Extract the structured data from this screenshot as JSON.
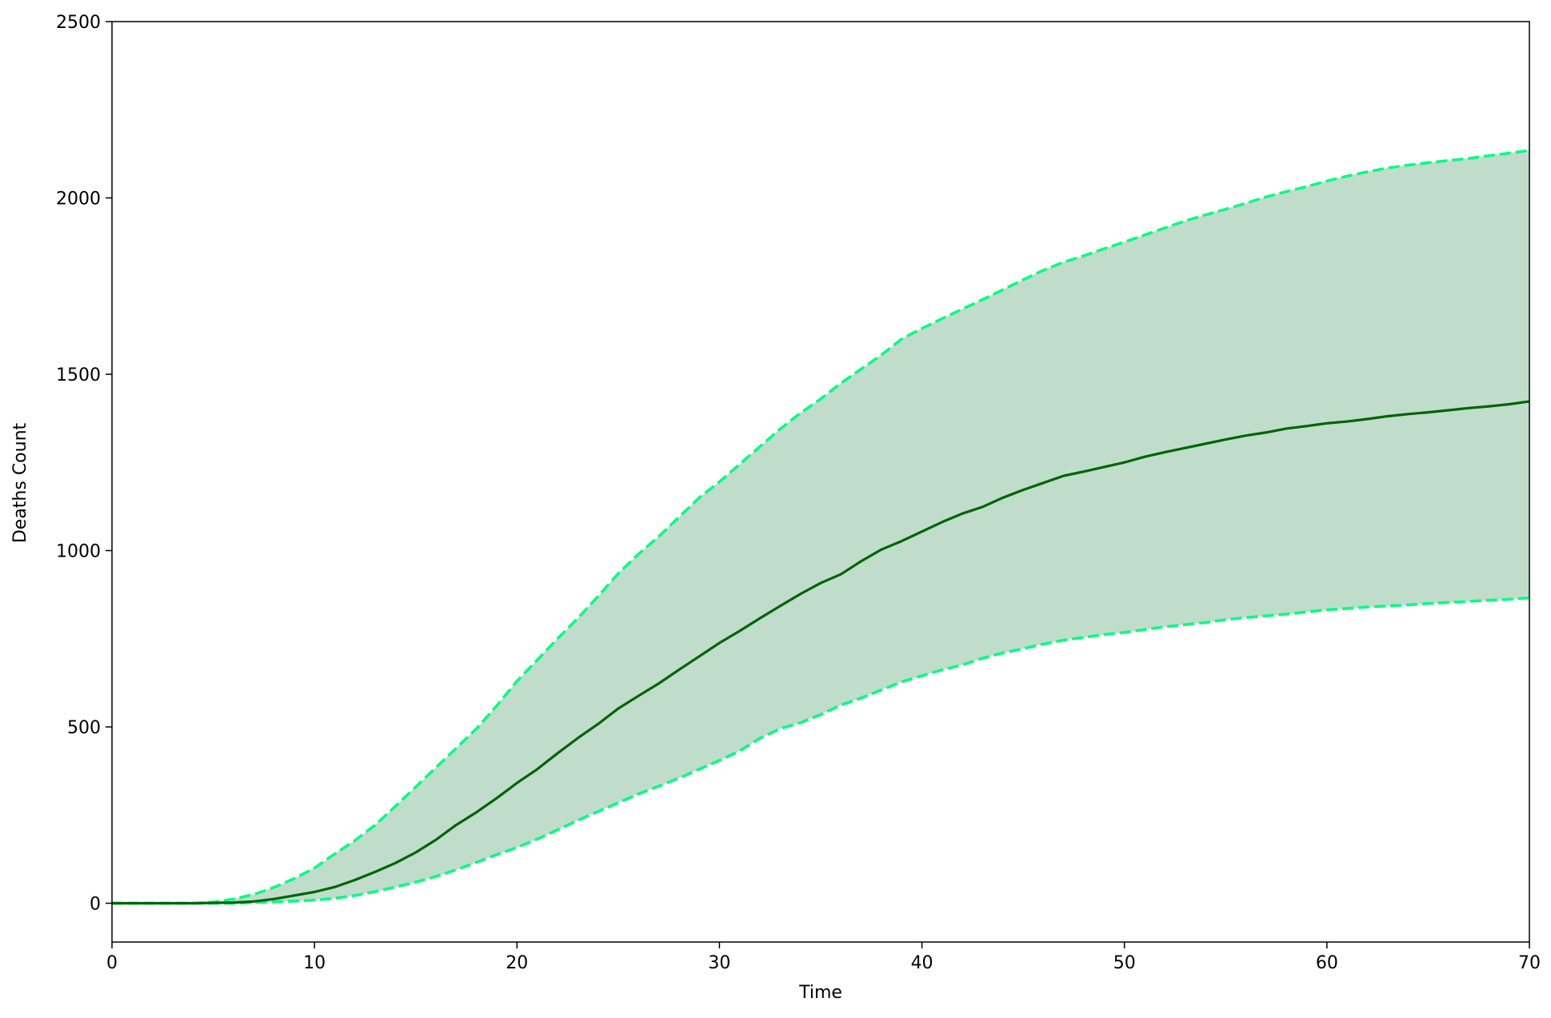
{
  "chart_data": {
    "type": "line",
    "xlabel": "Time",
    "ylabel": "Deaths Count",
    "x": [
      0,
      1,
      2,
      3,
      4,
      5,
      6,
      7,
      8,
      9,
      10,
      11,
      12,
      13,
      14,
      15,
      16,
      17,
      18,
      19,
      20,
      21,
      22,
      23,
      24,
      25,
      26,
      27,
      28,
      29,
      30,
      31,
      32,
      33,
      34,
      35,
      36,
      37,
      38,
      39,
      40,
      41,
      42,
      43,
      44,
      45,
      46,
      47,
      48,
      49,
      50,
      51,
      52,
      53,
      54,
      55,
      56,
      57,
      58,
      59,
      60,
      61,
      62,
      63,
      64,
      65,
      66,
      67,
      68,
      69,
      70
    ],
    "series": [
      {
        "color": "#006400",
        "linestyle": "solid",
        "values": [
          0,
          0,
          0,
          0,
          0,
          1,
          2,
          5,
          12,
          22,
          32,
          46,
          66,
          89,
          114,
          144,
          180,
          222,
          258,
          298,
          341,
          380,
          425,
          468,
          508,
          552,
          588,
          623,
          662,
          700,
          738,
          772,
          808,
          843,
          877,
          908,
          933,
          970,
          1003,
          1027,
          1054,
          1081,
          1105,
          1124,
          1150,
          1172,
          1192,
          1212,
          1224,
          1237,
          1250,
          1266,
          1279,
          1291,
          1303,
          1315,
          1326,
          1335,
          1346,
          1353,
          1361,
          1366,
          1373,
          1381,
          1387,
          1392,
          1398,
          1404,
          1409,
          1415,
          1423
        ]
      },
      {
        "color": "#00ff7f",
        "linestyle": "dashed",
        "values": [
          0,
          0,
          0,
          0,
          0,
          3,
          12,
          25,
          45,
          70,
          100,
          140,
          178,
          222,
          275,
          330,
          385,
          440,
          495,
          560,
          630,
          690,
          750,
          808,
          870,
          935,
          990,
          1040,
          1095,
          1150,
          1195,
          1245,
          1295,
          1345,
          1390,
          1430,
          1475,
          1515,
          1555,
          1600,
          1630,
          1658,
          1685,
          1712,
          1740,
          1768,
          1795,
          1818,
          1836,
          1856,
          1875,
          1895,
          1915,
          1935,
          1952,
          1968,
          1985,
          2003,
          2018,
          2032,
          2048,
          2062,
          2074,
          2085,
          2093,
          2100,
          2106,
          2112,
          2120,
          2127,
          2135
        ]
      },
      {
        "color": "#00ff7f",
        "linestyle": "dashed",
        "values": [
          0,
          0,
          0,
          0,
          0,
          0,
          0,
          2,
          4,
          6,
          9,
          14,
          22,
          33,
          46,
          60,
          76,
          95,
          116,
          138,
          158,
          182,
          208,
          235,
          260,
          285,
          310,
          332,
          355,
          380,
          405,
          432,
          468,
          495,
          512,
          535,
          562,
          582,
          605,
          628,
          645,
          662,
          676,
          695,
          710,
          722,
          735,
          746,
          754,
          762,
          768,
          776,
          784,
          790,
          796,
          804,
          810,
          815,
          820,
          826,
          832,
          836,
          840,
          843,
          846,
          850,
          853,
          856,
          859,
          862,
          866
        ]
      }
    ],
    "fill_between": {
      "series": [
        1,
        2
      ],
      "color": "#c0ddcc"
    },
    "xlim": [
      0,
      70
    ],
    "xticks": [
      0,
      10,
      20,
      30,
      40,
      50,
      60,
      70
    ],
    "ylim": [
      -110,
      2500
    ],
    "yticks": [
      0,
      500,
      1000,
      1500,
      2000,
      2500
    ],
    "grid": false
  }
}
